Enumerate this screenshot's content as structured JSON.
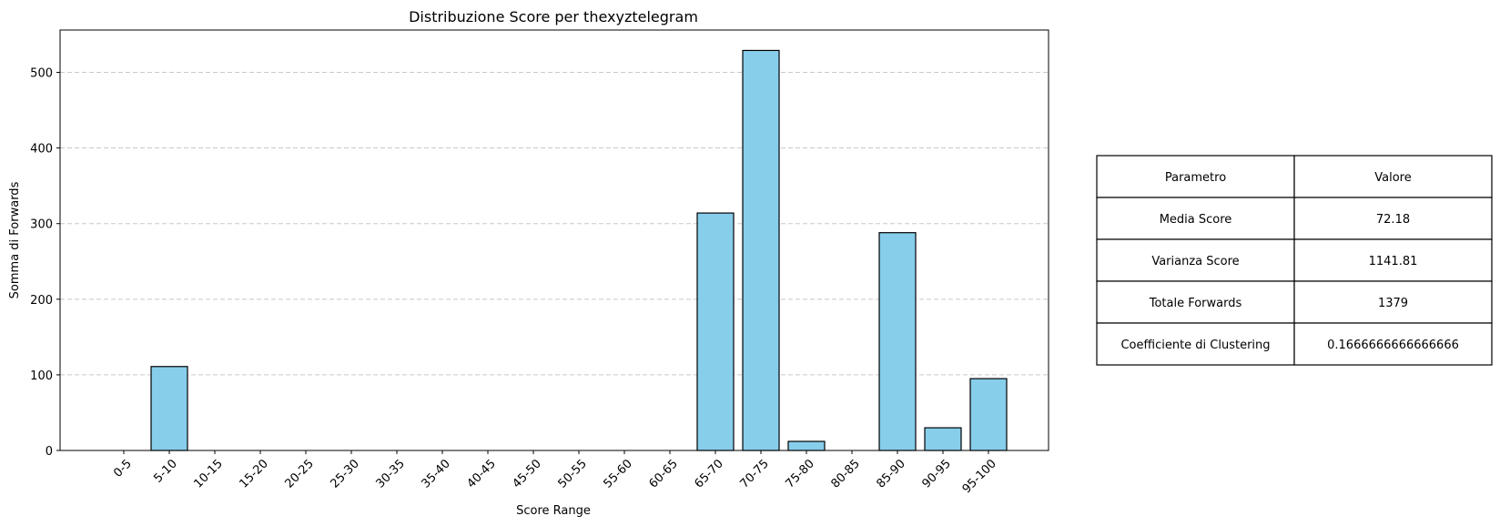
{
  "chart_data": {
    "type": "bar",
    "title": "Distribuzione Score per thexyztelegram",
    "xlabel": "Score Range",
    "ylabel": "Somma di Forwards",
    "categories": [
      "0-5",
      "5-10",
      "10-15",
      "15-20",
      "20-25",
      "25-30",
      "30-35",
      "35-40",
      "40-45",
      "45-50",
      "50-55",
      "55-60",
      "60-65",
      "65-70",
      "70-75",
      "75-80",
      "80-85",
      "85-90",
      "90-95",
      "95-100"
    ],
    "values": [
      0,
      111,
      0,
      0,
      0,
      0,
      0,
      0,
      0,
      0,
      0,
      0,
      0,
      314,
      529,
      12,
      0,
      288,
      30,
      95
    ],
    "ylim": [
      0,
      556
    ],
    "yticks": [
      0,
      100,
      200,
      300,
      400,
      500
    ],
    "grid": "y-axis dashed",
    "bar_color": "#87ceeb",
    "bar_edge_color": "#000000",
    "grid_color": "#c8c8c8"
  },
  "table": {
    "headers": [
      "Parametro",
      "Valore"
    ],
    "rows": [
      [
        "Media Score",
        "72.18"
      ],
      [
        "Varianza Score",
        "1141.81"
      ],
      [
        "Totale Forwards",
        "1379"
      ],
      [
        "Coefficiente di Clustering",
        "0.1666666666666666"
      ]
    ]
  }
}
